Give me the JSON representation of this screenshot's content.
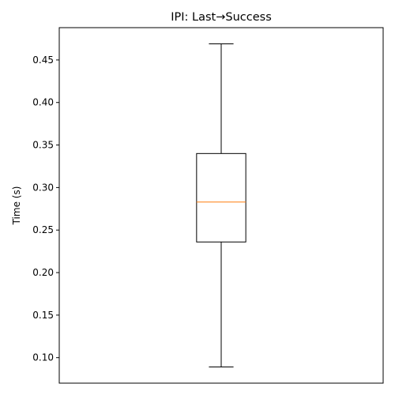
{
  "chart_data": {
    "type": "boxplot",
    "title": "IPI: Last→Success",
    "xlabel": "",
    "ylabel": "Time (s)",
    "ylim": [
      0.07,
      0.488
    ],
    "yticks": [
      {
        "value": 0.1,
        "label": "0.10"
      },
      {
        "value": 0.15,
        "label": "0.15"
      },
      {
        "value": 0.2,
        "label": "0.20"
      },
      {
        "value": 0.25,
        "label": "0.25"
      },
      {
        "value": 0.3,
        "label": "0.30"
      },
      {
        "value": 0.35,
        "label": "0.35"
      },
      {
        "value": 0.4,
        "label": "0.40"
      },
      {
        "value": 0.45,
        "label": "0.45"
      }
    ],
    "grid": false,
    "boxes": [
      {
        "whisker_low": 0.089,
        "q1": 0.236,
        "median": 0.283,
        "q3": 0.34,
        "whisker_high": 0.469,
        "box_color": "#000000",
        "median_color": "#ff7f0e"
      }
    ]
  }
}
